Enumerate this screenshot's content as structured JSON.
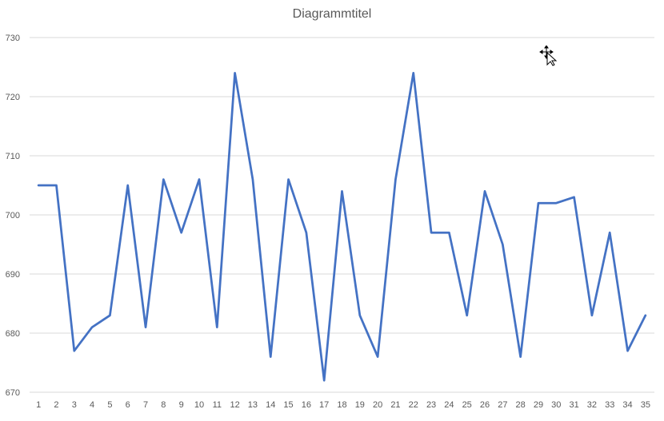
{
  "chart_data": {
    "type": "line",
    "title": "Diagrammtitel",
    "xlabel": "",
    "ylabel": "",
    "categories": [
      "1",
      "2",
      "3",
      "4",
      "5",
      "6",
      "7",
      "8",
      "9",
      "10",
      "11",
      "12",
      "13",
      "14",
      "15",
      "16",
      "17",
      "18",
      "19",
      "20",
      "21",
      "22",
      "23",
      "24",
      "25",
      "26",
      "27",
      "28",
      "29",
      "30",
      "31",
      "32",
      "33",
      "34",
      "35"
    ],
    "series": [
      {
        "color": "#4472C4",
        "values": [
          705,
          705,
          677,
          681,
          683,
          705,
          681,
          706,
          697,
          706,
          681,
          724,
          706,
          676,
          706,
          697,
          672,
          704,
          683,
          676,
          706,
          724,
          697,
          697,
          683,
          704,
          695,
          676,
          702,
          702,
          703,
          683,
          697,
          677,
          683
        ]
      }
    ],
    "ylim": [
      670,
      730
    ],
    "yticks": [
      670,
      680,
      690,
      700,
      710,
      720,
      730
    ],
    "grid": true,
    "legend": "none",
    "gridline_color": "#D9D9D9",
    "axis_text_color": "#595959"
  }
}
